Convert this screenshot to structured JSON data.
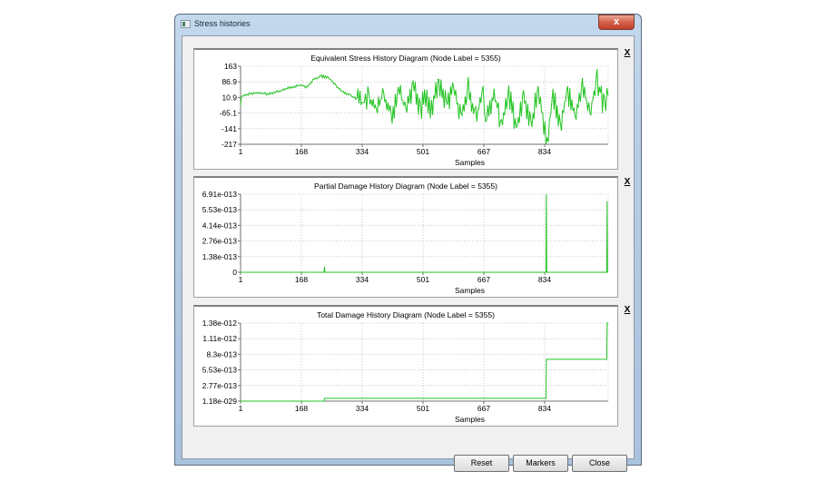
{
  "window": {
    "title": "Stress histories",
    "close_glyph": "x"
  },
  "buttons": {
    "reset": "Reset",
    "markers": "Markers",
    "close": "Close"
  },
  "panel_close_glyph": "X",
  "series_color": "#22c422",
  "chart_data": [
    {
      "type": "line",
      "title": "Equivalent Stress History Diagram (Node Label = 5355)",
      "xlabel": "Samples",
      "ylabel": "",
      "x_ticks": [
        "1",
        "168",
        "334",
        "501",
        "667",
        "834"
      ],
      "y_ticks": [
        "163",
        "86.9",
        "10.9",
        "-65.1",
        "-141",
        "-217"
      ],
      "xlim": [
        1,
        1000
      ],
      "ylim": [
        -217,
        163
      ],
      "grid": true,
      "legend": "none",
      "series": [
        {
          "name": "Equivalent Stress",
          "x": [
            1,
            3,
            6,
            12,
            25,
            50,
            80,
            100,
            130,
            160,
            168,
            180,
            200,
            220,
            240,
            260,
            280,
            300,
            320,
            334,
            350,
            370,
            390,
            410,
            430,
            450,
            470,
            490,
            501,
            520,
            540,
            560,
            580,
            600,
            620,
            640,
            660,
            667,
            690,
            710,
            730,
            750,
            770,
            790,
            810,
            834,
            850,
            870,
            890,
            910,
            930,
            950,
            970,
            990,
            1000
          ],
          "values": [
            -30,
            8,
            18,
            22,
            30,
            32,
            28,
            38,
            55,
            70,
            72,
            58,
            100,
            115,
            108,
            70,
            35,
            20,
            0,
            -20,
            20,
            -60,
            30,
            -90,
            40,
            -40,
            65,
            -50,
            20,
            -40,
            75,
            -10,
            50,
            -70,
            55,
            -90,
            35,
            -110,
            40,
            -130,
            30,
            -140,
            25,
            -120,
            45,
            -217,
            30,
            -120,
            45,
            -90,
            70,
            -60,
            90,
            -40,
            20
          ]
        }
      ]
    },
    {
      "type": "line",
      "title": "Partial Damage History Diagram (Node Label = 5355)",
      "xlabel": "Samples",
      "ylabel": "",
      "x_ticks": [
        "1",
        "168",
        "334",
        "501",
        "667",
        "834"
      ],
      "y_ticks": [
        "6.91e-013",
        "5.53e-013",
        "4.14e-013",
        "2.76e-013",
        "1.38e-013",
        "0"
      ],
      "xlim": [
        1,
        1000
      ],
      "ylim": [
        0,
        6.91e-13
      ],
      "grid": true,
      "legend": "none",
      "series": [
        {
          "name": "Partial Damage",
          "x": [
            1,
            228,
            229,
            230,
            831,
            832,
            833,
            996,
            997,
            998,
            1000
          ],
          "values": [
            0,
            0,
            5e-14,
            0,
            0,
            6.91e-13,
            0,
            0,
            6.3e-13,
            0,
            0
          ]
        }
      ]
    },
    {
      "type": "line",
      "title": "Total Damage History Diagram (Node Label = 5355)",
      "xlabel": "Samples",
      "ylabel": "",
      "x_ticks": [
        "1",
        "168",
        "334",
        "501",
        "667",
        "834"
      ],
      "y_ticks": [
        "1.38e-012",
        "1.11e-012",
        "8.3e-013",
        "5.53e-013",
        "2.77e-013",
        "1.18e-029"
      ],
      "xlim": [
        1,
        1000
      ],
      "ylim": [
        1.18e-29,
        1.38e-12
      ],
      "grid": true,
      "legend": "none",
      "series": [
        {
          "name": "Total Damage",
          "x": [
            1,
            228,
            229,
            831,
            832,
            996,
            997,
            1000
          ],
          "values": [
            1.18e-29,
            1.18e-29,
            5e-14,
            5e-14,
            7.4e-13,
            7.4e-13,
            1.38e-12,
            1.38e-12
          ]
        }
      ]
    }
  ]
}
